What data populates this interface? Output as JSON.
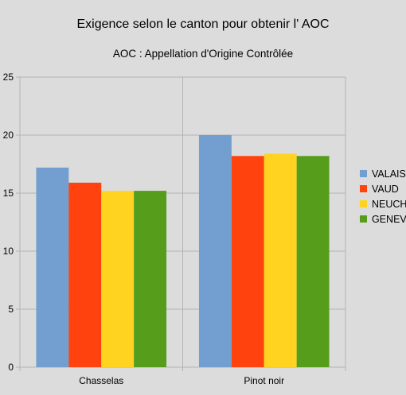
{
  "chart_data": {
    "type": "bar",
    "title": "Exigence selon le canton pour obtenir l' AOC",
    "subtitle": "AOC : Appellation d'Origine Contrôlée",
    "categories": [
      "Chasselas",
      "Pinot noir"
    ],
    "series": [
      {
        "name": "VALAIS",
        "color": "#729fcf",
        "values": [
          17.2,
          20.0
        ]
      },
      {
        "name": "VAUD",
        "color": "#ff420e",
        "values": [
          15.9,
          18.2
        ]
      },
      {
        "name": "NEUCHATEL",
        "color": "#ffd320",
        "values": [
          15.2,
          18.4
        ]
      },
      {
        "name": "GENEVE",
        "color": "#579d1c",
        "values": [
          15.2,
          18.2
        ]
      }
    ],
    "yticks": [
      "0",
      "5",
      "10",
      "15",
      "20",
      "25"
    ],
    "ylim": [
      0,
      25
    ],
    "grid": true,
    "legend": "right"
  }
}
